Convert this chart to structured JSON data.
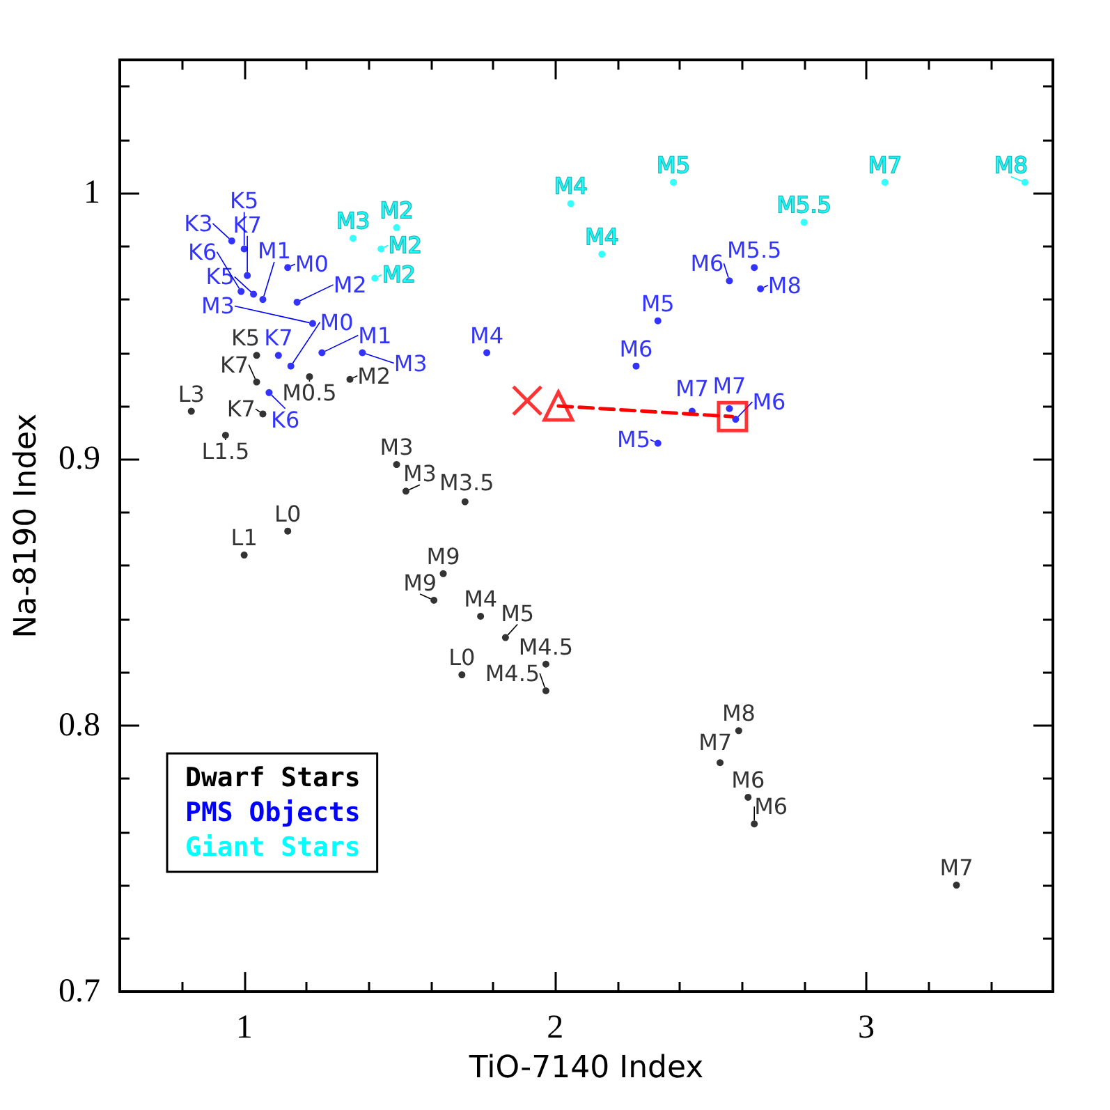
{
  "chart_data": {
    "type": "scatter",
    "xlabel": "TiO-7140 Index",
    "ylabel": "Na-8190 Index",
    "xlim": [
      0.6,
      3.6
    ],
    "ylim": [
      0.7,
      1.05
    ],
    "xticks": [
      {
        "value": 0.8,
        "label": null
      },
      1,
      {
        "value": 1.2,
        "label": null
      },
      {
        "value": 1.4,
        "label": null
      },
      {
        "value": 1.6,
        "label": null
      },
      {
        "value": 1.8,
        "label": null
      },
      2,
      {
        "value": 2.2,
        "label": null
      },
      {
        "value": 2.4,
        "label": null
      },
      {
        "value": 2.6,
        "label": null
      },
      {
        "value": 2.8,
        "label": null
      },
      3,
      {
        "value": 3.2,
        "label": null
      },
      {
        "value": 3.4,
        "label": null
      }
    ],
    "yticks": [
      0.7,
      {
        "value": 0.72,
        "label": null
      },
      {
        "value": 0.74,
        "label": null
      },
      {
        "value": 0.76,
        "label": null
      },
      {
        "value": 0.78,
        "label": null
      },
      0.8,
      {
        "value": 0.82,
        "label": null
      },
      {
        "value": 0.84,
        "label": null
      },
      {
        "value": 0.86,
        "label": null
      },
      {
        "value": 0.88,
        "label": null
      },
      0.9,
      {
        "value": 0.92,
        "label": null
      },
      {
        "value": 0.94,
        "label": null
      },
      {
        "value": 0.96,
        "label": null
      },
      {
        "value": 0.98,
        "label": null
      },
      1,
      {
        "value": 1.02,
        "label": null
      },
      {
        "value": 1.04,
        "label": null
      }
    ],
    "grid": false,
    "legend": "bottom left",
    "marker": "circle",
    "series": [
      {
        "name": "Dwarf Stars",
        "color": "#000000",
        "x": [
          1.04,
          1.04,
          1.21,
          1.34,
          0.83,
          0.94,
          1.06,
          1.49,
          1.52,
          1.71,
          1.14,
          1.0,
          1.64,
          1.61,
          1.76,
          1.84,
          1.7,
          1.97,
          1.97,
          2.59,
          2.53,
          2.62,
          2.64,
          3.29
        ],
        "values": [
          0.939,
          0.929,
          0.931,
          0.93,
          0.918,
          0.909,
          0.917,
          0.898,
          0.888,
          0.884,
          0.873,
          0.864,
          0.857,
          0.847,
          0.841,
          0.833,
          0.819,
          0.823,
          0.813,
          0.798,
          0.786,
          0.773,
          0.763,
          0.74
        ],
        "value_labels": [
          "K5",
          "K7",
          "M0.5",
          "M2",
          "L3",
          "L1.5",
          "K7",
          "M3",
          "M3",
          "M3.5",
          "L0",
          "L1",
          "M9",
          "M9",
          "M4",
          "M5",
          "L0",
          "M4.5",
          "M4.5",
          "M8",
          "M7",
          "M6",
          "M6",
          "M7"
        ]
      },
      {
        "name": "PMS Objects",
        "color": "#0000ff",
        "x": [
          0.96,
          1.0,
          1.14,
          1.01,
          0.99,
          1.03,
          1.06,
          1.17,
          1.22,
          1.11,
          1.25,
          1.38,
          1.15,
          1.08,
          1.78,
          2.33,
          2.26,
          2.64,
          2.56,
          2.66,
          2.44,
          2.56,
          2.58,
          2.33
        ],
        "values": [
          0.982,
          0.979,
          0.972,
          0.969,
          0.963,
          0.962,
          0.96,
          0.959,
          0.951,
          0.939,
          0.94,
          0.94,
          0.935,
          0.925,
          0.94,
          0.952,
          0.935,
          0.972,
          0.967,
          0.964,
          0.918,
          0.919,
          0.915,
          0.906
        ],
        "value_labels": [
          "K3",
          "K5",
          "M0",
          "K7",
          "K6",
          "K5",
          "M1",
          "M2",
          "M3",
          "K7",
          "M1",
          "M3",
          "M0",
          "K6",
          "M4",
          "M5",
          "M6",
          "M5.5",
          "M6",
          "M8",
          "M7",
          "M7",
          "M6",
          "M5"
        ]
      },
      {
        "name": "Giant Stars",
        "color": "#00ffff",
        "x": [
          1.35,
          1.49,
          1.44,
          1.42,
          2.05,
          2.15,
          2.38,
          2.8,
          3.06,
          3.51
        ],
        "values": [
          0.983,
          0.987,
          0.979,
          0.968,
          0.996,
          0.977,
          1.004,
          0.989,
          1.004,
          1.004
        ],
        "value_labels": [
          "M3",
          "M2",
          "M2",
          "M2",
          "M4",
          "M4",
          "M5",
          "M5.5",
          "M7",
          "M8"
        ]
      },
      {
        "type": "line",
        "color": "#ff0000",
        "line_style": "dashed",
        "marker": "none",
        "x": [
          2.01,
          2.57
        ],
        "values": [
          0.92,
          0.916
        ]
      },
      {
        "color": "#ff0000",
        "marker": "cross",
        "x": [
          1.91
        ],
        "values": [
          0.922
        ]
      },
      {
        "color": "#ff0000",
        "marker": "triangle",
        "x": [
          2.01
        ],
        "values": [
          0.92
        ]
      },
      {
        "color": "#ff0000",
        "marker": "square",
        "x": [
          2.57
        ],
        "values": [
          0.916
        ]
      }
    ]
  }
}
